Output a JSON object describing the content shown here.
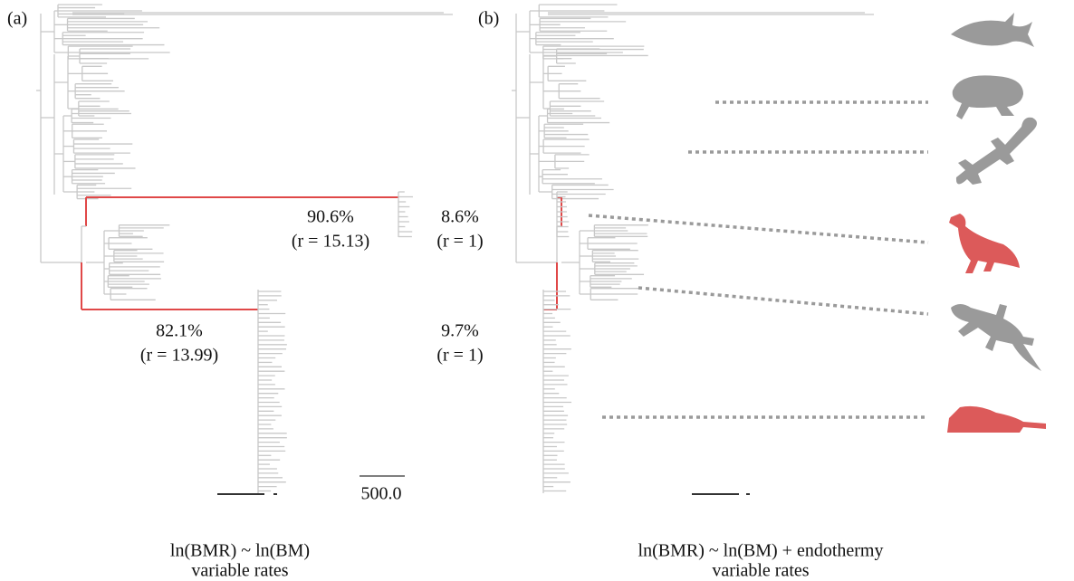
{
  "panels": [
    {
      "label": "(a)",
      "annotations": [
        {
          "percent": "90.6%",
          "rate": "(r = 15.13)"
        },
        {
          "percent": "8.6%",
          "rate": "(r = 1)"
        },
        {
          "percent": "82.1%",
          "rate": "(r = 13.99)"
        },
        {
          "percent": "9.7%",
          "rate": "(r = 1)"
        }
      ],
      "scale_bar": "500.0",
      "caption": [
        "ln(BMR) ~ ln(BM)",
        "variable rates"
      ]
    },
    {
      "label": "(b)",
      "caption": [
        "ln(BMR) ~ ln(BM) + endothermy",
        "variable rates"
      ]
    }
  ]
}
